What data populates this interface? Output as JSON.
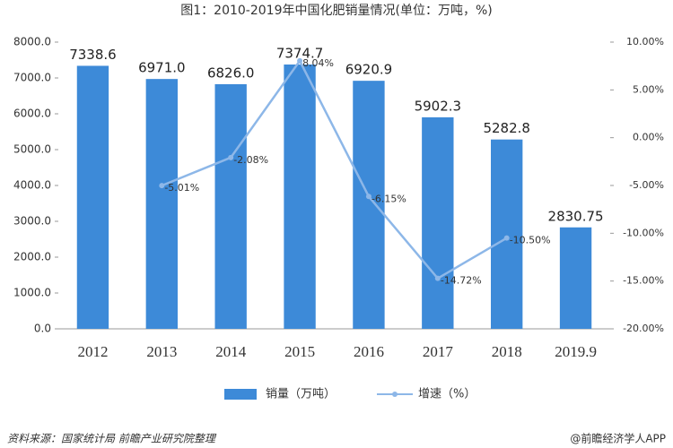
{
  "chart_data": {
    "type": "bar",
    "title": "图1：2010-2019年中国化肥销量情况(单位：万吨，%)",
    "categories": [
      "2012",
      "2013",
      "2014",
      "2015",
      "2016",
      "2017",
      "2018",
      "2019.9"
    ],
    "series": [
      {
        "name": "销量（万吨）",
        "type": "bar",
        "color": "#3d8ad8",
        "values": [
          7338.6,
          6971.0,
          6826.0,
          7374.7,
          6920.9,
          5902.3,
          5282.8,
          2830.75
        ],
        "value_labels": [
          "7338.6",
          "6971.0",
          "6826.0",
          "7374.7",
          "6920.9",
          "5902.3",
          "5282.8",
          "2830.75"
        ]
      },
      {
        "name": "增速（%）",
        "type": "line",
        "axis": "y2",
        "color": "#8db7e8",
        "values": [
          null,
          -5.01,
          -2.08,
          8.04,
          -6.15,
          -14.72,
          -10.5,
          null
        ],
        "value_labels": [
          null,
          "-5.01%",
          "-2.08%",
          "8.04%",
          "-6.15%",
          "-14.72%",
          "-10.50%",
          null
        ]
      }
    ],
    "ylim": [
      0,
      8000
    ],
    "yticks": [
      {
        "value": 0,
        "label": "0.0"
      },
      {
        "value": 1000,
        "label": "1000.0"
      },
      {
        "value": 2000,
        "label": "2000.0"
      },
      {
        "value": 3000,
        "label": "3000.0"
      },
      {
        "value": 4000,
        "label": "4000.0"
      },
      {
        "value": 5000,
        "label": "5000.0"
      },
      {
        "value": 6000,
        "label": "6000.0"
      },
      {
        "value": 7000,
        "label": "7000.0"
      },
      {
        "value": 8000,
        "label": "8000.0"
      }
    ],
    "y2lim": [
      -20,
      10
    ],
    "y2ticks": [
      {
        "value": -20,
        "label": "-20.00%"
      },
      {
        "value": -15,
        "label": "-15.00%"
      },
      {
        "value": -10,
        "label": "-10.00%"
      },
      {
        "value": -5,
        "label": "-5.00%"
      },
      {
        "value": 0,
        "label": "0.00%"
      },
      {
        "value": 5,
        "label": "5.00%"
      },
      {
        "value": 10,
        "label": "10.00%"
      }
    ],
    "legend": "bottom",
    "source": "资料来源：国家统计局 前瞻产业研究院整理",
    "watermark": "@前瞻经济学人APP"
  }
}
